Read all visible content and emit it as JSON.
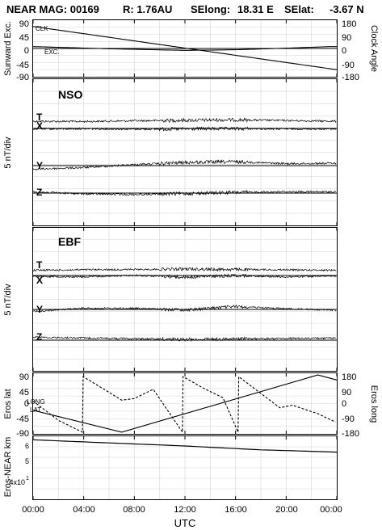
{
  "header": {
    "mission": "NEAR MAG: 00169",
    "radius": "R: 1.76AU",
    "selong_label": "SElong:",
    "selong_value": "18.31 E",
    "selat_label": "SElat:",
    "selat_value": "-3.67 N"
  },
  "x_axis": {
    "label": "UTC",
    "ticks": [
      "00:00",
      "04:00",
      "08:00",
      "12:00",
      "16:00",
      "20:00",
      "00:00"
    ],
    "range_hours": [
      0,
      24
    ]
  },
  "panels": {
    "sunward": {
      "left_label": "Sunward Exc.",
      "right_label": "Clock Angle",
      "left_ticks": [
        "90",
        "45",
        "0",
        "-45",
        "-90"
      ],
      "right_ticks": [
        "180",
        "90",
        "0",
        "-90",
        "-180"
      ],
      "curve_labels": [
        "CLK",
        "EXC."
      ]
    },
    "nso": {
      "title": "NSO",
      "y_label": "5 nT/div",
      "components": [
        "T",
        "X",
        "Y",
        "Z"
      ]
    },
    "ebf": {
      "title": "EBF",
      "y_label": "5 nT/div",
      "components": [
        "T",
        "X",
        "Y",
        "Z"
      ]
    },
    "eros": {
      "left_label": "Eros lat",
      "right_label": "Eros long",
      "left_ticks": [
        "90",
        "45",
        "0",
        "-45",
        "-90"
      ],
      "right_ticks": [
        "180",
        "90",
        "0",
        "-90",
        "-180"
      ],
      "curve_labels": [
        "LONG",
        "LAT"
      ]
    },
    "dist": {
      "y_label": "Eros-NEAR km",
      "ticks": [
        "6",
        "5",
        "4x10",
        "1"
      ]
    }
  },
  "chart_data": [
    {
      "type": "line",
      "panel": "sunward",
      "xlim": [
        0,
        24
      ],
      "ylim": [
        -90,
        90
      ],
      "y2lim": [
        -180,
        180
      ],
      "grid": true,
      "series": [
        {
          "name": "CLK",
          "axis": "right",
          "x": [
            0,
            24
          ],
          "y": [
            140,
            -135
          ]
        },
        {
          "name": "EXC.",
          "axis": "left",
          "x": [
            0,
            6,
            12,
            16,
            20,
            23.5
          ],
          "y": [
            6,
            -1,
            -6,
            -4,
            1,
            6
          ]
        }
      ]
    },
    {
      "type": "line",
      "panel": "nso",
      "xlim": [
        0,
        24
      ],
      "grid": true,
      "series": [
        {
          "name": "T",
          "x": [
            0,
            4,
            8,
            12,
            16,
            20,
            24
          ],
          "y": [
            0.3,
            0.2,
            0.5,
            0.7,
            0.9,
            0.6,
            0.3
          ]
        },
        {
          "name": "X",
          "x": [
            0,
            4,
            8,
            12,
            16,
            20,
            24
          ],
          "y": [
            -0.2,
            -0.1,
            -0.3,
            -0.2,
            -0.1,
            -0.2,
            -0.2
          ]
        },
        {
          "name": "Y",
          "x": [
            0,
            4,
            8,
            12,
            16,
            20,
            24
          ],
          "y": [
            -1.5,
            -0.8,
            0.4,
            1.3,
            1.6,
            0.8,
            1.0
          ]
        },
        {
          "name": "Z",
          "x": [
            0,
            4,
            8,
            12,
            16,
            20,
            24
          ],
          "y": [
            0.5,
            -0.3,
            -0.6,
            -0.2,
            0.3,
            0.6,
            0.5
          ]
        }
      ]
    },
    {
      "type": "line",
      "panel": "ebf",
      "xlim": [
        0,
        24
      ],
      "grid": true,
      "series": [
        {
          "name": "T",
          "x": [
            0,
            4,
            8,
            12,
            16,
            20,
            24
          ],
          "y": [
            0.5,
            0.7,
            0.8,
            1.0,
            0.8,
            0.7,
            0.5
          ]
        },
        {
          "name": "X",
          "x": [
            0,
            4,
            8,
            12,
            16,
            20,
            24
          ],
          "y": [
            -0.3,
            -0.6,
            0.1,
            -0.7,
            0.0,
            -0.6,
            -0.2
          ]
        },
        {
          "name": "Y",
          "x": [
            0,
            4,
            8,
            12,
            16,
            20,
            24
          ],
          "y": [
            -0.8,
            0.5,
            0.4,
            -0.2,
            1.2,
            0.3,
            -0.3
          ]
        },
        {
          "name": "Z",
          "x": [
            0,
            4,
            8,
            12,
            16,
            20,
            24
          ],
          "y": [
            1.2,
            0.9,
            0.6,
            0.3,
            0.5,
            0.7,
            0.8
          ]
        }
      ]
    },
    {
      "type": "line",
      "panel": "eros",
      "xlim": [
        0,
        24
      ],
      "ylim": [
        -90,
        90
      ],
      "y2lim": [
        -180,
        180
      ],
      "grid": true,
      "series": [
        {
          "name": "LONG",
          "axis": "right",
          "x": [
            0,
            2.0,
            3.9,
            3.95,
            5.5,
            7.0,
            8.0,
            9.5,
            11.8,
            11.85,
            13.5,
            15.0,
            16.2,
            16.25,
            18.0,
            19.5,
            20.5,
            22.5,
            23.9
          ],
          "y": [
            15,
            -100,
            -170,
            160,
            90,
            20,
            30,
            85,
            -170,
            160,
            90,
            35,
            -170,
            160,
            60,
            -25,
            -10,
            -60,
            -110
          ]
        },
        {
          "name": "LAT",
          "axis": "left",
          "x": [
            0,
            7.0,
            22.5,
            24
          ],
          "y": [
            -20,
            -85,
            85,
            70
          ]
        }
      ]
    },
    {
      "type": "line",
      "panel": "dist",
      "xlim": [
        0,
        24
      ],
      "grid": true,
      "series": [
        {
          "name": "Eros-NEAR km",
          "x": [
            0,
            6,
            12,
            18,
            24
          ],
          "y": [
            5.28,
            5.24,
            5.2,
            5.15,
            5.12
          ]
        }
      ]
    }
  ]
}
